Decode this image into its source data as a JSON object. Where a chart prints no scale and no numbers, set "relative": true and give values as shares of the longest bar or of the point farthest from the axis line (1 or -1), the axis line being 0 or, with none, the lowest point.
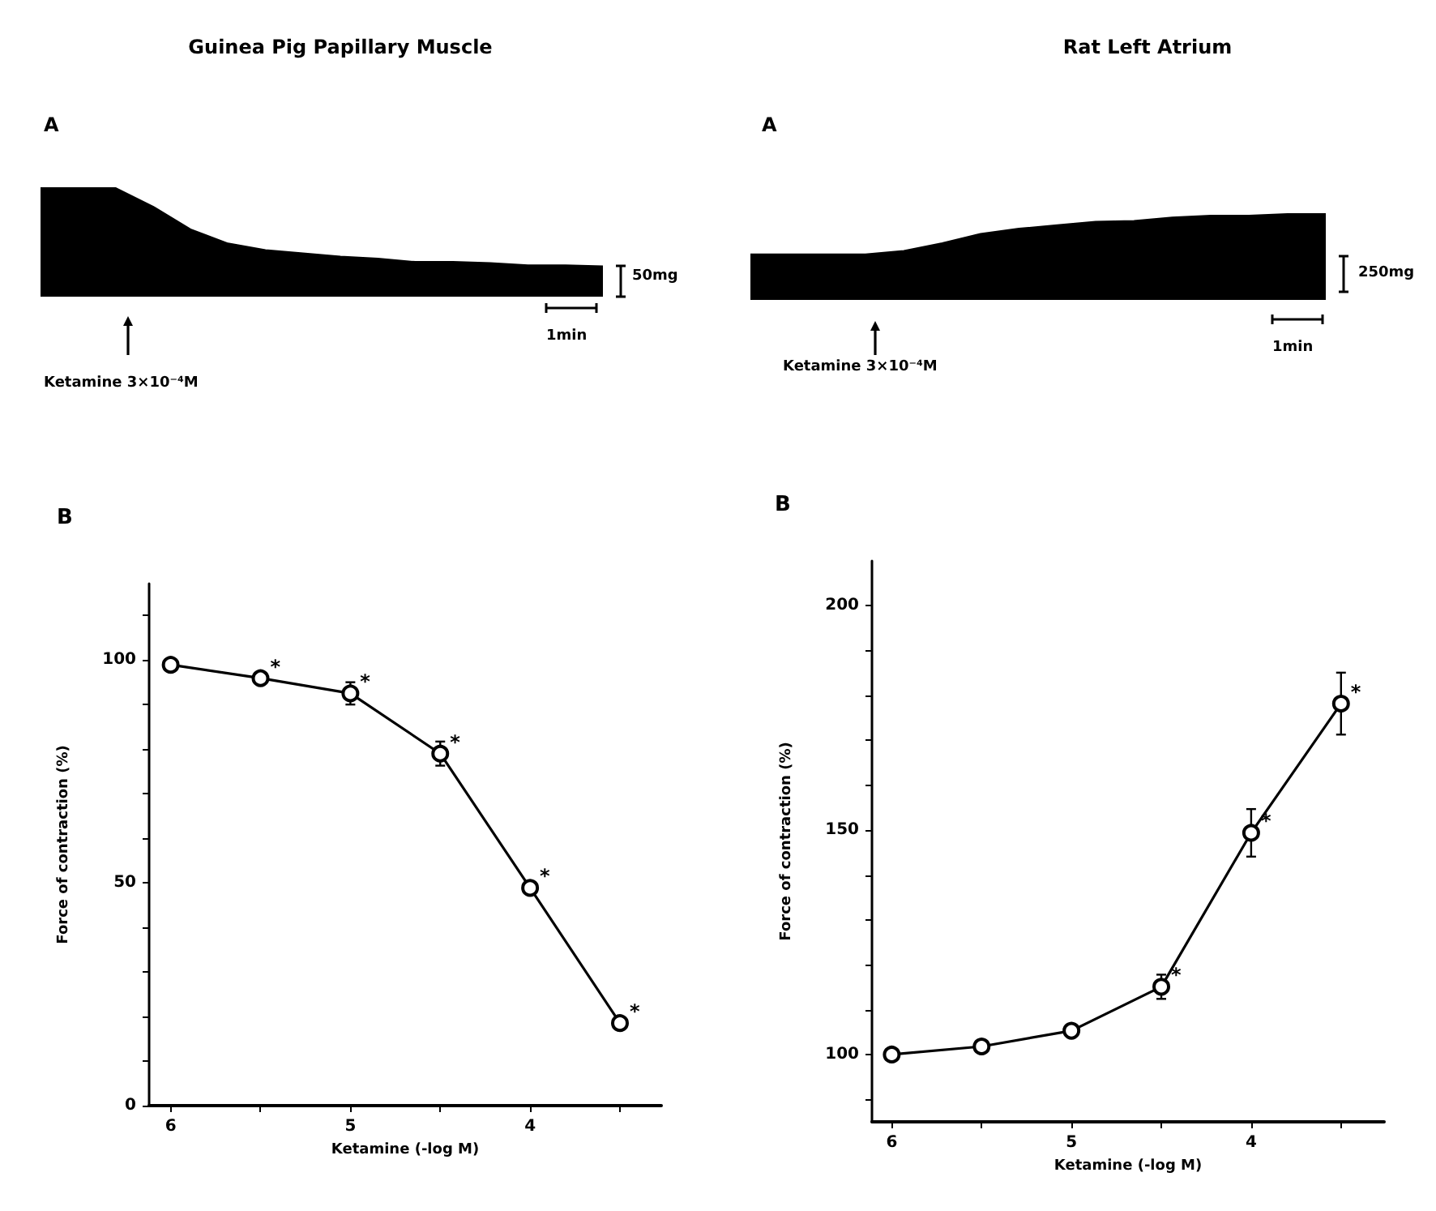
{
  "chart_data": [
    {
      "type": "area",
      "title": "Guinea Pig Papillary Muscle",
      "subtitle": "A",
      "categories": [
        null,
        null,
        null,
        null,
        null,
        null,
        null,
        null,
        null,
        null,
        null,
        null,
        null,
        null,
        null,
        null
      ],
      "values": [
        1,
        1,
        1,
        0.83,
        0.62,
        0.49,
        0.43,
        0.4,
        0.37,
        0.35,
        0.32,
        0.32,
        0.31,
        0.29,
        0.29,
        0.28
      ],
      "color": "#000000",
      "relative": true,
      "annotations": [
        "Ketamine 3×10⁻⁴M",
        "50mg",
        "1min"
      ]
    },
    {
      "type": "area",
      "title": "Rat Left Atrium",
      "subtitle": "A",
      "categories": [
        null,
        null,
        null,
        null,
        null,
        null,
        null,
        null,
        null,
        null,
        null,
        null,
        null,
        null,
        null,
        null
      ],
      "values": [
        0.53,
        0.53,
        0.53,
        0.53,
        0.57,
        0.66,
        0.77,
        0.83,
        0.87,
        0.91,
        0.92,
        0.96,
        0.98,
        0.98,
        1,
        1
      ],
      "color": "#000000",
      "relative": true,
      "annotations": [
        "Ketamine 3×10⁻⁴M",
        "250mg",
        "1min"
      ]
    },
    {
      "type": "line",
      "title": "B",
      "xlabel": "Ketamine (-log M)",
      "ylabel": "Force of contraction (%)",
      "x": [
        6,
        5.5,
        5,
        4.5,
        4,
        3.5
      ],
      "values": [
        98.8,
        95.8,
        92.4,
        78.9,
        48.8,
        18.5
      ],
      "errors": [
        null,
        null,
        2.5,
        2.7,
        null,
        null
      ],
      "color": "#000000",
      "marker": "circle",
      "line_style": "solid",
      "xlim": [
        6.12,
        3.27
      ],
      "xticks": [
        6,
        {
          "value": 5.5,
          "label": null
        },
        5,
        {
          "value": 4.5,
          "label": null
        },
        4,
        {
          "value": 3.5,
          "label": null
        }
      ],
      "ylim": [
        0,
        117
      ],
      "yticks": [
        0,
        {
          "value": 10,
          "label": null
        },
        {
          "value": 20,
          "label": null
        },
        {
          "value": 30,
          "label": null
        },
        {
          "value": 40,
          "label": null
        },
        50,
        {
          "value": 60,
          "label": null
        },
        {
          "value": 70,
          "label": null
        },
        {
          "value": 80,
          "label": null
        },
        {
          "value": 90,
          "label": null
        },
        100,
        {
          "value": 110,
          "label": null
        }
      ],
      "annotations": [
        {
          "text": "*",
          "x": 5.5,
          "y": 95.8
        },
        {
          "text": "*",
          "x": 5,
          "y": 92.4
        },
        {
          "text": "*",
          "x": 4.5,
          "y": 78.9
        },
        {
          "text": "*",
          "x": 4,
          "y": 48.8
        },
        {
          "text": "*",
          "x": 3.5,
          "y": 18.5
        }
      ]
    },
    {
      "type": "line",
      "title": "B",
      "xlabel": "Ketamine (-log M)",
      "ylabel": "Force of contraction (%)",
      "x": [
        6,
        5.5,
        5,
        4.5,
        4,
        3.5
      ],
      "values": [
        100,
        101.8,
        105.3,
        115.1,
        149.4,
        178.2
      ],
      "errors": [
        null,
        null,
        null,
        2.7,
        5.3,
        6.9
      ],
      "color": "#000000",
      "marker": "circle",
      "line_style": "solid",
      "xlim": [
        6.11,
        3.26
      ],
      "xticks": [
        6,
        {
          "value": 5.5,
          "label": null
        },
        5,
        {
          "value": 4.5,
          "label": null
        },
        4,
        {
          "value": 3.5,
          "label": null
        }
      ],
      "ylim": [
        85,
        210
      ],
      "yticks": [
        {
          "value": 90,
          "label": null
        },
        100,
        {
          "value": 110,
          "label": null
        },
        {
          "value": 120,
          "label": null
        },
        {
          "value": 130,
          "label": null
        },
        {
          "value": 140,
          "label": null
        },
        150,
        {
          "value": 160,
          "label": null
        },
        {
          "value": 170,
          "label": null
        },
        {
          "value": 180,
          "label": null
        },
        {
          "value": 190,
          "label": null
        },
        200
      ],
      "annotations": [
        {
          "text": "*",
          "x": 4.5,
          "y": 115.1
        },
        {
          "text": "*",
          "x": 4,
          "y": 149.4
        },
        {
          "text": "*",
          "x": 3.5,
          "y": 178.2
        }
      ]
    }
  ]
}
